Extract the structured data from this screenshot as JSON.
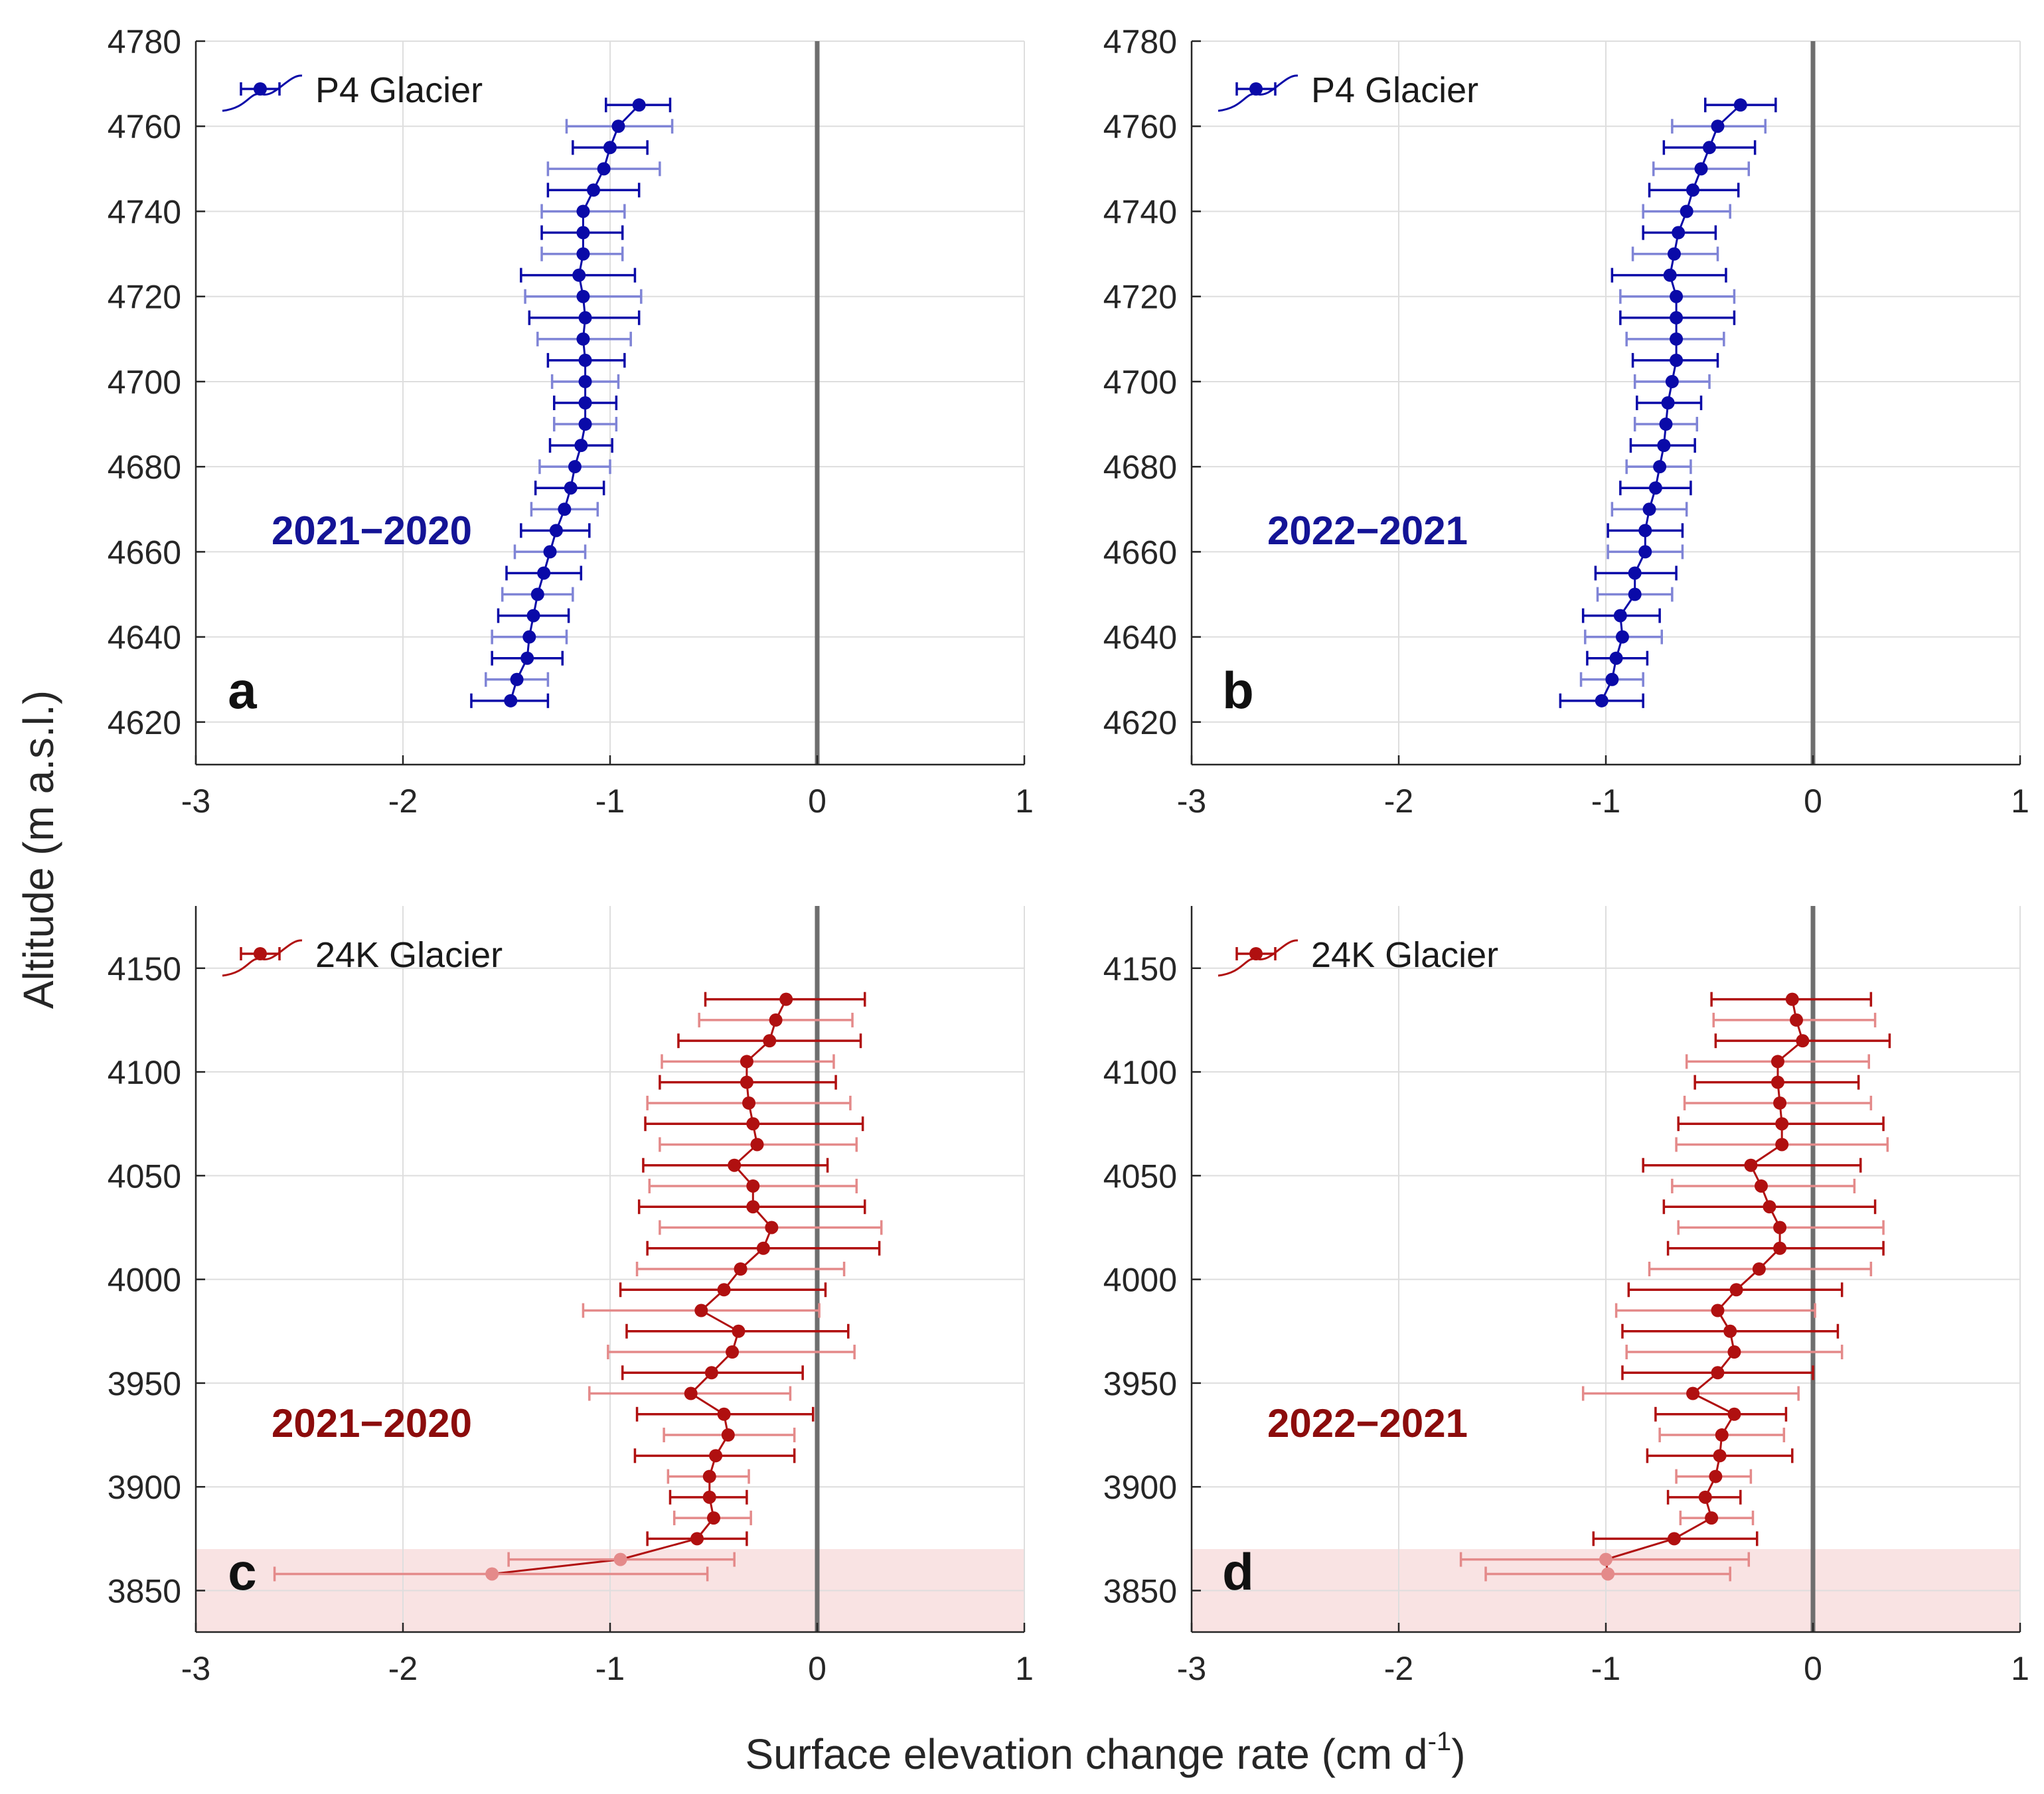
{
  "colors": {
    "blue": "#0a0aa8",
    "blue_light": "#7f84d6",
    "red": "#b01010",
    "red_light": "#e48a8a",
    "shade": "#f9e3e3",
    "zero_line": "#6e6e6e",
    "grid": "#dedede"
  },
  "figure": {
    "ylabel": "Altitude (m a.s.l.)",
    "xlabel_main": "Surface elevation change rate (cm d",
    "xlabel_sup": "-1",
    "xlabel_end": ")"
  },
  "chart_data": [
    {
      "type": "line",
      "panel_label": "a",
      "legend": "P4 Glacier",
      "period": "2021−2020",
      "glacier": "p4",
      "color_key": "blue",
      "xlim": [
        -3,
        1
      ],
      "ylim": [
        4610,
        4780
      ],
      "x_ticks": [
        -3,
        -2,
        -1,
        0,
        1
      ],
      "x_tick_labels": [
        "-3",
        "-2",
        "-1",
        "0",
        "1"
      ],
      "y_ticks": [
        4620,
        4640,
        4660,
        4680,
        4700,
        4720,
        4740,
        4760,
        4780
      ],
      "y_tick_labels": [
        "4620",
        "4640",
        "4660",
        "4680",
        "4700",
        "4720",
        "4740",
        "4760",
        "4780"
      ],
      "points": [
        {
          "alt": 4765,
          "x": -0.86,
          "lo": -1.02,
          "hi": -0.71
        },
        {
          "alt": 4760,
          "x": -0.96,
          "lo": -1.21,
          "hi": -0.7
        },
        {
          "alt": 4755,
          "x": -1.0,
          "lo": -1.18,
          "hi": -0.82
        },
        {
          "alt": 4750,
          "x": -1.03,
          "lo": -1.3,
          "hi": -0.76
        },
        {
          "alt": 4745,
          "x": -1.08,
          "lo": -1.3,
          "hi": -0.86
        },
        {
          "alt": 4740,
          "x": -1.13,
          "lo": -1.33,
          "hi": -0.93
        },
        {
          "alt": 4735,
          "x": -1.13,
          "lo": -1.33,
          "hi": -0.94
        },
        {
          "alt": 4730,
          "x": -1.13,
          "lo": -1.33,
          "hi": -0.94
        },
        {
          "alt": 4725,
          "x": -1.15,
          "lo": -1.43,
          "hi": -0.88
        },
        {
          "alt": 4720,
          "x": -1.13,
          "lo": -1.41,
          "hi": -0.85
        },
        {
          "alt": 4715,
          "x": -1.12,
          "lo": -1.39,
          "hi": -0.86
        },
        {
          "alt": 4710,
          "x": -1.13,
          "lo": -1.35,
          "hi": -0.9
        },
        {
          "alt": 4705,
          "x": -1.12,
          "lo": -1.3,
          "hi": -0.93
        },
        {
          "alt": 4700,
          "x": -1.12,
          "lo": -1.28,
          "hi": -0.96
        },
        {
          "alt": 4695,
          "x": -1.12,
          "lo": -1.27,
          "hi": -0.97
        },
        {
          "alt": 4690,
          "x": -1.12,
          "lo": -1.27,
          "hi": -0.97
        },
        {
          "alt": 4685,
          "x": -1.14,
          "lo": -1.29,
          "hi": -0.99
        },
        {
          "alt": 4680,
          "x": -1.17,
          "lo": -1.34,
          "hi": -1.0
        },
        {
          "alt": 4675,
          "x": -1.19,
          "lo": -1.36,
          "hi": -1.03
        },
        {
          "alt": 4670,
          "x": -1.22,
          "lo": -1.38,
          "hi": -1.06
        },
        {
          "alt": 4665,
          "x": -1.26,
          "lo": -1.43,
          "hi": -1.1
        },
        {
          "alt": 4660,
          "x": -1.29,
          "lo": -1.46,
          "hi": -1.12
        },
        {
          "alt": 4655,
          "x": -1.32,
          "lo": -1.5,
          "hi": -1.14
        },
        {
          "alt": 4650,
          "x": -1.35,
          "lo": -1.52,
          "hi": -1.18
        },
        {
          "alt": 4645,
          "x": -1.37,
          "lo": -1.54,
          "hi": -1.2
        },
        {
          "alt": 4640,
          "x": -1.39,
          "lo": -1.57,
          "hi": -1.21
        },
        {
          "alt": 4635,
          "x": -1.4,
          "lo": -1.57,
          "hi": -1.23
        },
        {
          "alt": 4630,
          "x": -1.45,
          "lo": -1.6,
          "hi": -1.3
        },
        {
          "alt": 4625,
          "x": -1.48,
          "lo": -1.67,
          "hi": -1.3
        }
      ]
    },
    {
      "type": "line",
      "panel_label": "b",
      "legend": "P4 Glacier",
      "period": "2022−2021",
      "glacier": "p4",
      "color_key": "blue",
      "xlim": [
        -3,
        1
      ],
      "ylim": [
        4610,
        4780
      ],
      "x_ticks": [
        -3,
        -2,
        -1,
        0,
        1
      ],
      "x_tick_labels": [
        "-3",
        "-2",
        "-1",
        "0",
        "1"
      ],
      "y_ticks": [
        4620,
        4640,
        4660,
        4680,
        4700,
        4720,
        4740,
        4760,
        4780
      ],
      "y_tick_labels": [
        "4620",
        "4640",
        "4660",
        "4680",
        "4700",
        "4720",
        "4740",
        "4760",
        "4780"
      ],
      "points": [
        {
          "alt": 4765,
          "x": -0.35,
          "lo": -0.52,
          "hi": -0.18
        },
        {
          "alt": 4760,
          "x": -0.46,
          "lo": -0.68,
          "hi": -0.23
        },
        {
          "alt": 4755,
          "x": -0.5,
          "lo": -0.72,
          "hi": -0.28
        },
        {
          "alt": 4750,
          "x": -0.54,
          "lo": -0.77,
          "hi": -0.31
        },
        {
          "alt": 4745,
          "x": -0.58,
          "lo": -0.79,
          "hi": -0.36
        },
        {
          "alt": 4740,
          "x": -0.61,
          "lo": -0.82,
          "hi": -0.4
        },
        {
          "alt": 4735,
          "x": -0.65,
          "lo": -0.82,
          "hi": -0.47
        },
        {
          "alt": 4730,
          "x": -0.67,
          "lo": -0.87,
          "hi": -0.46
        },
        {
          "alt": 4725,
          "x": -0.69,
          "lo": -0.97,
          "hi": -0.42
        },
        {
          "alt": 4720,
          "x": -0.66,
          "lo": -0.93,
          "hi": -0.38
        },
        {
          "alt": 4715,
          "x": -0.66,
          "lo": -0.93,
          "hi": -0.38
        },
        {
          "alt": 4710,
          "x": -0.66,
          "lo": -0.9,
          "hi": -0.43
        },
        {
          "alt": 4705,
          "x": -0.66,
          "lo": -0.87,
          "hi": -0.46
        },
        {
          "alt": 4700,
          "x": -0.68,
          "lo": -0.86,
          "hi": -0.5
        },
        {
          "alt": 4695,
          "x": -0.7,
          "lo": -0.85,
          "hi": -0.54
        },
        {
          "alt": 4690,
          "x": -0.71,
          "lo": -0.86,
          "hi": -0.56
        },
        {
          "alt": 4685,
          "x": -0.72,
          "lo": -0.88,
          "hi": -0.57
        },
        {
          "alt": 4680,
          "x": -0.74,
          "lo": -0.9,
          "hi": -0.59
        },
        {
          "alt": 4675,
          "x": -0.76,
          "lo": -0.93,
          "hi": -0.59
        },
        {
          "alt": 4670,
          "x": -0.79,
          "lo": -0.97,
          "hi": -0.61
        },
        {
          "alt": 4665,
          "x": -0.81,
          "lo": -0.99,
          "hi": -0.63
        },
        {
          "alt": 4660,
          "x": -0.81,
          "lo": -0.99,
          "hi": -0.63
        },
        {
          "alt": 4655,
          "x": -0.86,
          "lo": -1.05,
          "hi": -0.66
        },
        {
          "alt": 4650,
          "x": -0.86,
          "lo": -1.04,
          "hi": -0.68
        },
        {
          "alt": 4645,
          "x": -0.93,
          "lo": -1.11,
          "hi": -0.74
        },
        {
          "alt": 4640,
          "x": -0.92,
          "lo": -1.1,
          "hi": -0.73
        },
        {
          "alt": 4635,
          "x": -0.95,
          "lo": -1.09,
          "hi": -0.8
        },
        {
          "alt": 4630,
          "x": -0.97,
          "lo": -1.12,
          "hi": -0.82
        },
        {
          "alt": 4625,
          "x": -1.02,
          "lo": -1.22,
          "hi": -0.82
        }
      ]
    },
    {
      "type": "line",
      "panel_label": "c",
      "legend": "24K Glacier",
      "period": "2021−2020",
      "glacier": "24k",
      "color_key": "red",
      "xlim": [
        -3,
        1
      ],
      "ylim": [
        3830,
        4180
      ],
      "x_ticks": [
        -3,
        -2,
        -1,
        0,
        1
      ],
      "x_tick_labels": [
        "-3",
        "-2",
        "-1",
        "0",
        "1"
      ],
      "y_ticks": [
        3850,
        3900,
        3950,
        4000,
        4050,
        4100,
        4150
      ],
      "y_tick_labels": [
        "3850",
        "3900",
        "3950",
        "4000",
        "4050",
        "4100",
        "4150"
      ],
      "shade_range": [
        3830,
        3870
      ],
      "points": [
        {
          "alt": 4135,
          "x": -0.15,
          "lo": -0.54,
          "hi": 0.23
        },
        {
          "alt": 4125,
          "x": -0.2,
          "lo": -0.57,
          "hi": 0.17
        },
        {
          "alt": 4115,
          "x": -0.23,
          "lo": -0.67,
          "hi": 0.21
        },
        {
          "alt": 4105,
          "x": -0.34,
          "lo": -0.75,
          "hi": 0.08
        },
        {
          "alt": 4095,
          "x": -0.34,
          "lo": -0.76,
          "hi": 0.09
        },
        {
          "alt": 4085,
          "x": -0.33,
          "lo": -0.82,
          "hi": 0.16
        },
        {
          "alt": 4075,
          "x": -0.31,
          "lo": -0.83,
          "hi": 0.22
        },
        {
          "alt": 4065,
          "x": -0.29,
          "lo": -0.76,
          "hi": 0.19
        },
        {
          "alt": 4055,
          "x": -0.4,
          "lo": -0.84,
          "hi": 0.05
        },
        {
          "alt": 4045,
          "x": -0.31,
          "lo": -0.81,
          "hi": 0.19
        },
        {
          "alt": 4035,
          "x": -0.31,
          "lo": -0.86,
          "hi": 0.23
        },
        {
          "alt": 4025,
          "x": -0.22,
          "lo": -0.76,
          "hi": 0.31
        },
        {
          "alt": 4015,
          "x": -0.26,
          "lo": -0.82,
          "hi": 0.3
        },
        {
          "alt": 4005,
          "x": -0.37,
          "lo": -0.87,
          "hi": 0.13
        },
        {
          "alt": 3995,
          "x": -0.45,
          "lo": -0.95,
          "hi": 0.04
        },
        {
          "alt": 3985,
          "x": -0.56,
          "lo": -1.13,
          "hi": 0.01
        },
        {
          "alt": 3975,
          "x": -0.38,
          "lo": -0.92,
          "hi": 0.15
        },
        {
          "alt": 3965,
          "x": -0.41,
          "lo": -1.01,
          "hi": 0.18
        },
        {
          "alt": 3955,
          "x": -0.51,
          "lo": -0.94,
          "hi": -0.07
        },
        {
          "alt": 3945,
          "x": -0.61,
          "lo": -1.1,
          "hi": -0.13
        },
        {
          "alt": 3935,
          "x": -0.45,
          "lo": -0.87,
          "hi": -0.02
        },
        {
          "alt": 3925,
          "x": -0.43,
          "lo": -0.74,
          "hi": -0.11
        },
        {
          "alt": 3915,
          "x": -0.49,
          "lo": -0.88,
          "hi": -0.11
        },
        {
          "alt": 3905,
          "x": -0.52,
          "lo": -0.72,
          "hi": -0.33
        },
        {
          "alt": 3895,
          "x": -0.52,
          "lo": -0.71,
          "hi": -0.34
        },
        {
          "alt": 3885,
          "x": -0.5,
          "lo": -0.69,
          "hi": -0.32
        },
        {
          "alt": 3875,
          "x": -0.58,
          "lo": -0.82,
          "hi": -0.34
        },
        {
          "alt": 3865,
          "x": -0.95,
          "lo": -1.49,
          "hi": -0.4,
          "faded": true
        },
        {
          "alt": 3858,
          "x": -1.57,
          "lo": -2.62,
          "hi": -0.53,
          "faded": true
        }
      ]
    },
    {
      "type": "line",
      "panel_label": "d",
      "legend": "24K Glacier",
      "period": "2022−2021",
      "glacier": "24k",
      "color_key": "red",
      "xlim": [
        -3,
        1
      ],
      "ylim": [
        3830,
        4180
      ],
      "x_ticks": [
        -3,
        -2,
        -1,
        0,
        1
      ],
      "x_tick_labels": [
        "-3",
        "-2",
        "-1",
        "0",
        "1"
      ],
      "y_ticks": [
        3850,
        3900,
        3950,
        4000,
        4050,
        4100,
        4150
      ],
      "y_tick_labels": [
        "3850",
        "3900",
        "3950",
        "4000",
        "4050",
        "4100",
        "4150"
      ],
      "shade_range": [
        3830,
        3870
      ],
      "points": [
        {
          "alt": 4135,
          "x": -0.1,
          "lo": -0.49,
          "hi": 0.28
        },
        {
          "alt": 4125,
          "x": -0.08,
          "lo": -0.48,
          "hi": 0.3
        },
        {
          "alt": 4115,
          "x": -0.05,
          "lo": -0.47,
          "hi": 0.37
        },
        {
          "alt": 4105,
          "x": -0.17,
          "lo": -0.61,
          "hi": 0.27
        },
        {
          "alt": 4095,
          "x": -0.17,
          "lo": -0.57,
          "hi": 0.22
        },
        {
          "alt": 4085,
          "x": -0.16,
          "lo": -0.62,
          "hi": 0.28
        },
        {
          "alt": 4075,
          "x": -0.15,
          "lo": -0.65,
          "hi": 0.34
        },
        {
          "alt": 4065,
          "x": -0.15,
          "lo": -0.66,
          "hi": 0.36
        },
        {
          "alt": 4055,
          "x": -0.3,
          "lo": -0.82,
          "hi": 0.23
        },
        {
          "alt": 4045,
          "x": -0.25,
          "lo": -0.68,
          "hi": 0.2
        },
        {
          "alt": 4035,
          "x": -0.21,
          "lo": -0.72,
          "hi": 0.3
        },
        {
          "alt": 4025,
          "x": -0.16,
          "lo": -0.65,
          "hi": 0.34
        },
        {
          "alt": 4015,
          "x": -0.16,
          "lo": -0.7,
          "hi": 0.34
        },
        {
          "alt": 4005,
          "x": -0.26,
          "lo": -0.79,
          "hi": 0.28
        },
        {
          "alt": 3995,
          "x": -0.37,
          "lo": -0.89,
          "hi": 0.14
        },
        {
          "alt": 3985,
          "x": -0.46,
          "lo": -0.95,
          "hi": 0.01
        },
        {
          "alt": 3975,
          "x": -0.4,
          "lo": -0.92,
          "hi": 0.12
        },
        {
          "alt": 3965,
          "x": -0.38,
          "lo": -0.9,
          "hi": 0.14
        },
        {
          "alt": 3955,
          "x": -0.46,
          "lo": -0.92,
          "hi": 0.0
        },
        {
          "alt": 3945,
          "x": -0.58,
          "lo": -1.11,
          "hi": -0.07
        },
        {
          "alt": 3935,
          "x": -0.38,
          "lo": -0.76,
          "hi": -0.13
        },
        {
          "alt": 3925,
          "x": -0.44,
          "lo": -0.74,
          "hi": -0.14
        },
        {
          "alt": 3915,
          "x": -0.45,
          "lo": -0.8,
          "hi": -0.1
        },
        {
          "alt": 3905,
          "x": -0.47,
          "lo": -0.66,
          "hi": -0.3
        },
        {
          "alt": 3895,
          "x": -0.52,
          "lo": -0.7,
          "hi": -0.35
        },
        {
          "alt": 3885,
          "x": -0.49,
          "lo": -0.64,
          "hi": -0.29
        },
        {
          "alt": 3875,
          "x": -0.67,
          "lo": -1.06,
          "hi": -0.27
        },
        {
          "alt": 3865,
          "x": -1.0,
          "lo": -1.7,
          "hi": -0.31,
          "faded": true
        },
        {
          "alt": 3858,
          "x": -0.99,
          "lo": -1.58,
          "hi": -0.4,
          "faded": true
        }
      ]
    }
  ]
}
